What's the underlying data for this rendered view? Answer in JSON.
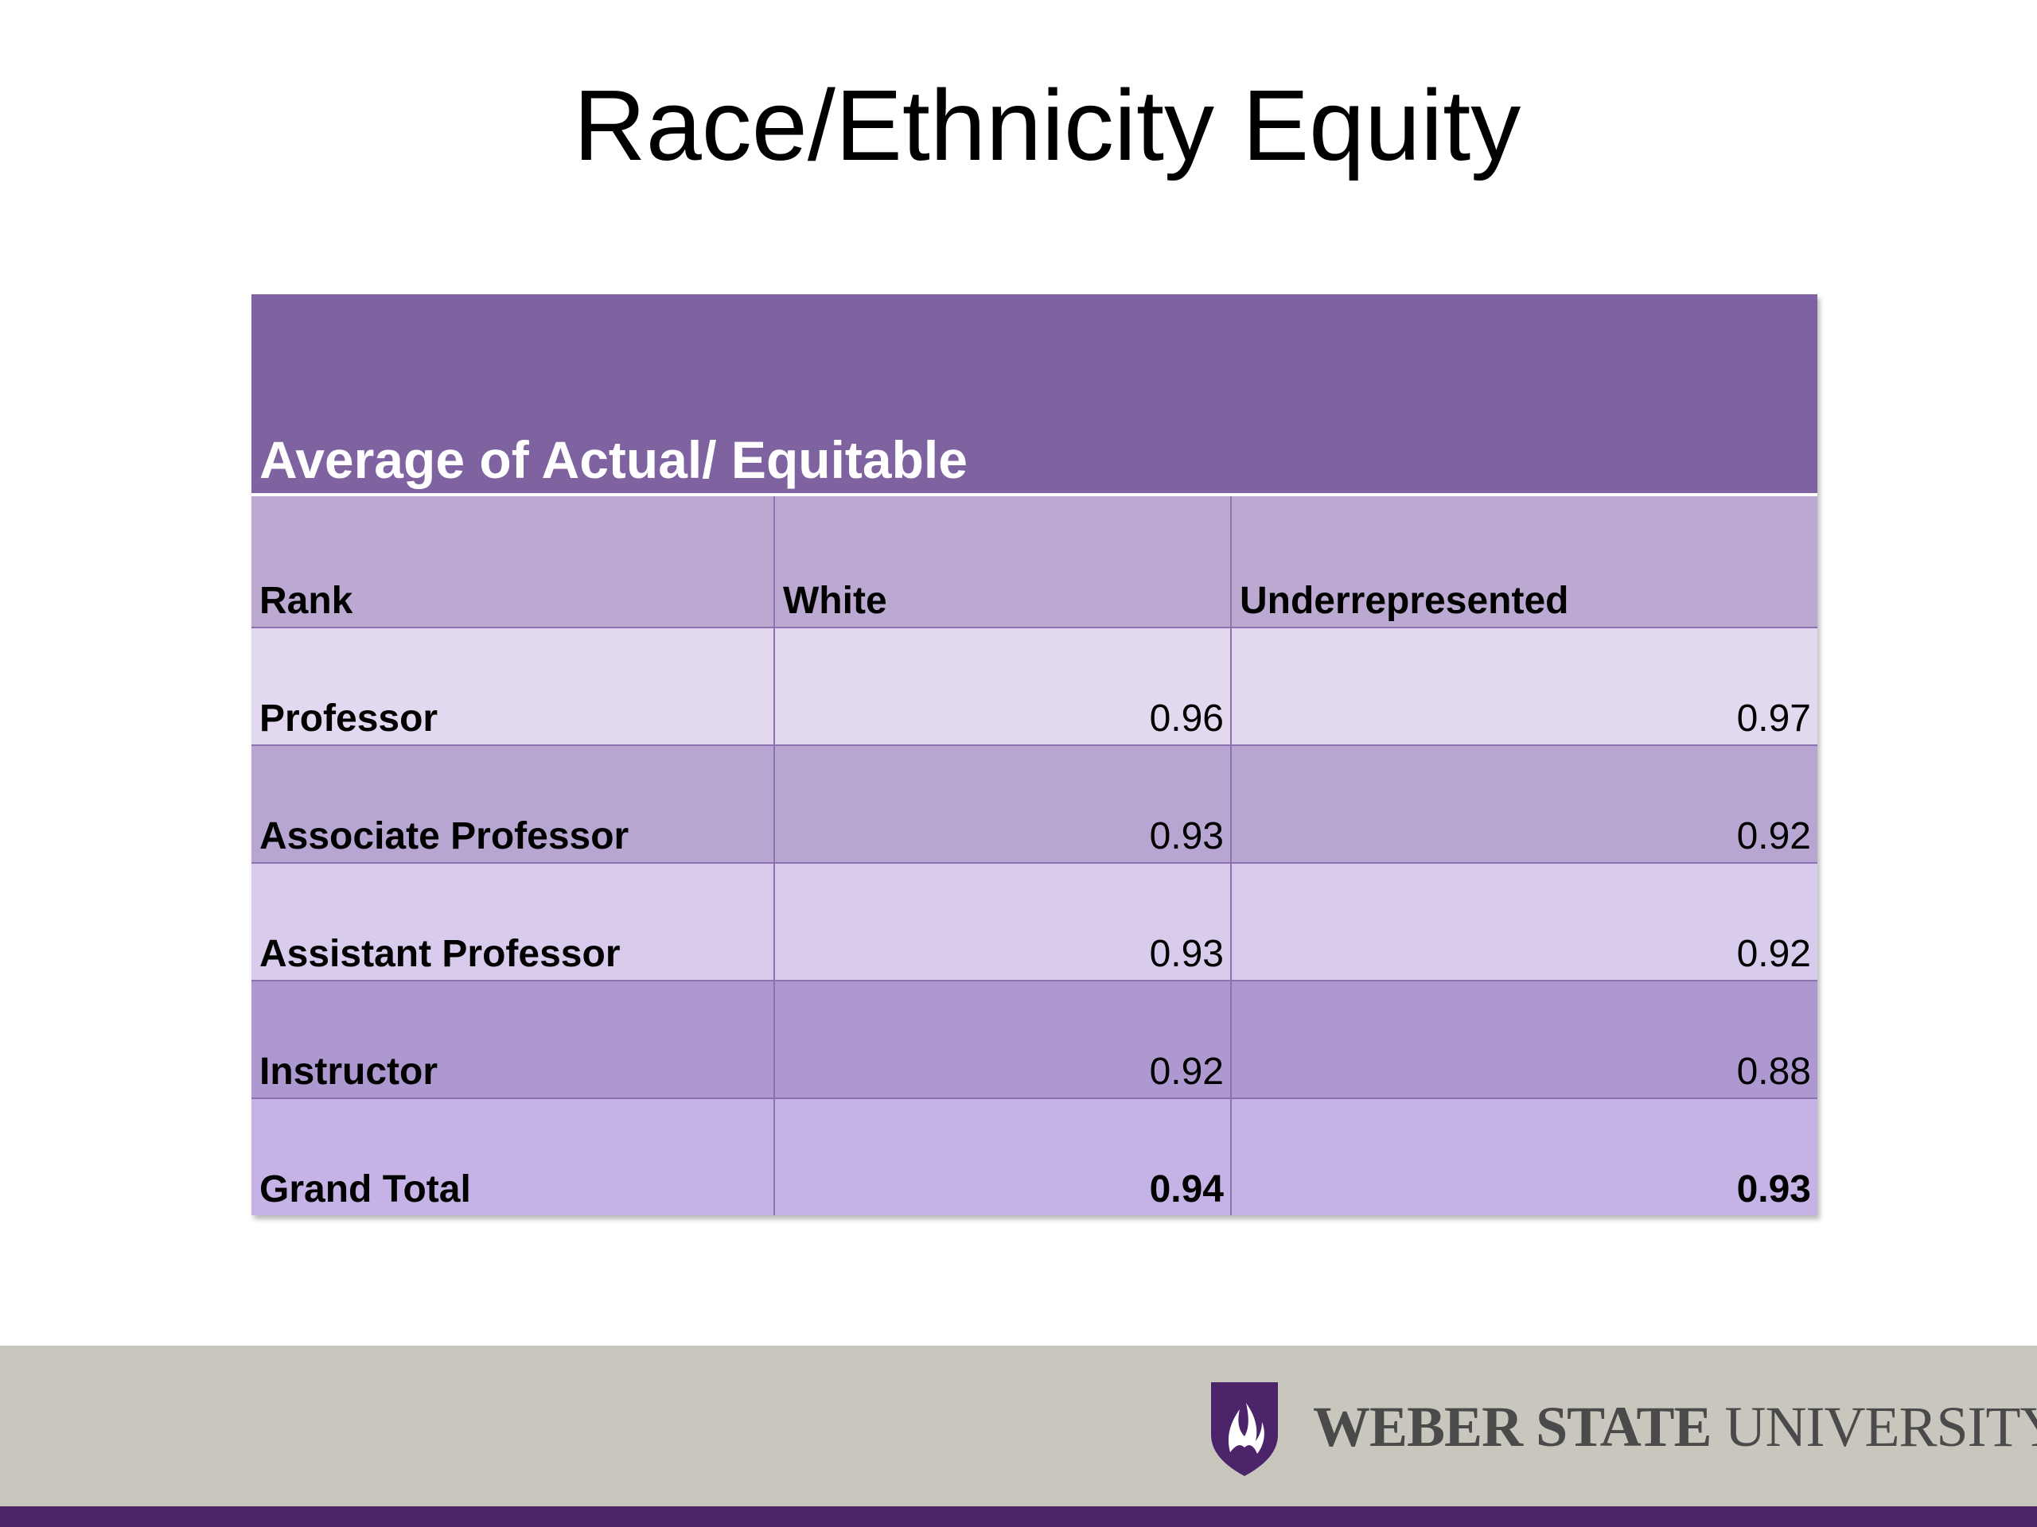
{
  "slide": {
    "title": "Race/Ethnicity Equity"
  },
  "table": {
    "header": "Average of Actual/ Equitable",
    "columns": [
      "Rank",
      "White",
      "Underrepresented"
    ],
    "rows": [
      {
        "rank": "Professor",
        "white": "0.96",
        "underrepresented": "0.97"
      },
      {
        "rank": "Associate Professor",
        "white": "0.93",
        "underrepresented": "0.92"
      },
      {
        "rank": "Assistant Professor",
        "white": "0.93",
        "underrepresented": "0.92"
      },
      {
        "rank": "Instructor",
        "white": "0.92",
        "underrepresented": "0.88"
      },
      {
        "rank": "Grand Total",
        "white": "0.94",
        "underrepresented": "0.93"
      }
    ]
  },
  "footer": {
    "university_bold": "WEBER STATE",
    "university_light": "UNIVERSITY",
    "logo_icon": "weber-state-shield-icon"
  },
  "colors": {
    "header_purple": "#7e63a0",
    "footer_gray": "#c9c7bd",
    "footer_line": "#4b2469"
  }
}
